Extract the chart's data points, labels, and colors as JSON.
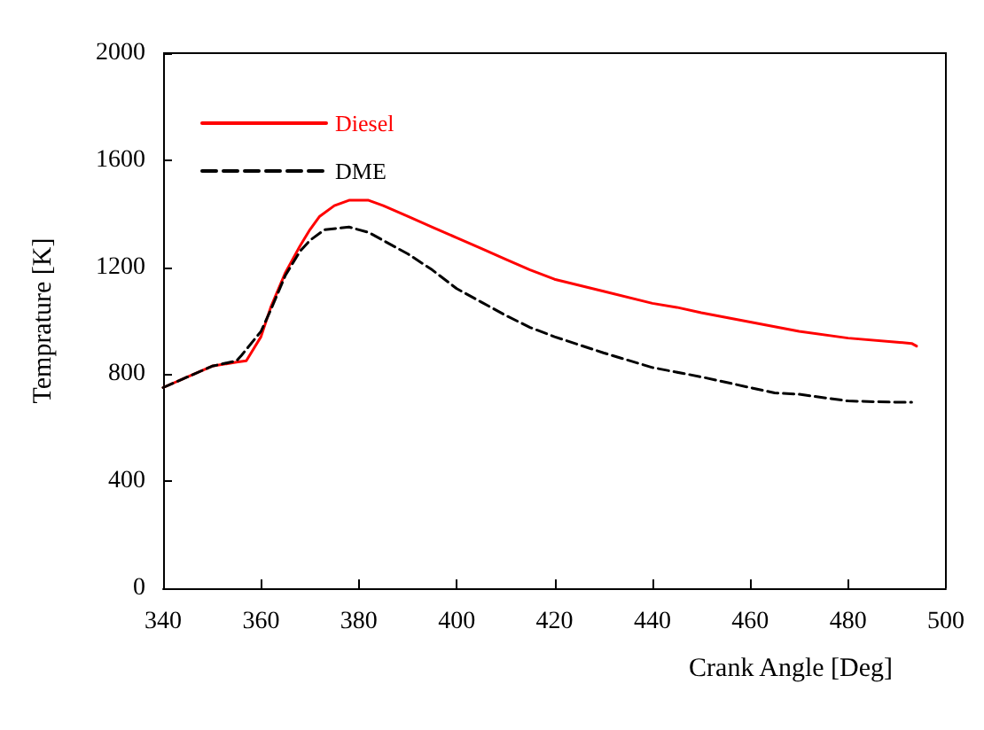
{
  "chart_data": {
    "type": "line",
    "xlabel": "Crank Angle [Deg]",
    "ylabel": "Temprature [K]",
    "xlim": [
      340,
      500
    ],
    "xticks": [
      340,
      360,
      380,
      400,
      420,
      440,
      460,
      480,
      500
    ],
    "ylim": [
      0,
      2000
    ],
    "yticks": [
      0,
      400,
      800,
      1200,
      1600,
      2000
    ],
    "grid": false,
    "legend": "top left",
    "marker": "none",
    "series": [
      {
        "name": "Diesel",
        "color": "#ff0000",
        "line_style": "solid",
        "x": [
          340,
          345,
          350,
          355,
          357,
          358,
          360,
          362,
          365,
          368,
          370,
          372,
          375,
          378,
          382,
          385,
          390,
          395,
          400,
          405,
          410,
          415,
          420,
          430,
          440,
          445,
          450,
          460,
          470,
          480,
          490,
          493,
          494
        ],
        "values": [
          750,
          790,
          830,
          845,
          850,
          880,
          940,
          1050,
          1180,
          1280,
          1340,
          1390,
          1430,
          1450,
          1450,
          1430,
          1390,
          1350,
          1310,
          1270,
          1230,
          1190,
          1155,
          1110,
          1065,
          1050,
          1030,
          995,
          960,
          935,
          920,
          915,
          905
        ]
      },
      {
        "name": "DME",
        "color": "#000000",
        "line_style": "dashed",
        "x": [
          340,
          345,
          350,
          355,
          356,
          360,
          362,
          365,
          368,
          370,
          373,
          378,
          382,
          385,
          390,
          395,
          400,
          405,
          410,
          415,
          420,
          430,
          440,
          450,
          460,
          465,
          470,
          480,
          490,
          493
        ],
        "values": [
          750,
          790,
          830,
          850,
          870,
          960,
          1040,
          1170,
          1260,
          1300,
          1340,
          1350,
          1330,
          1300,
          1250,
          1190,
          1120,
          1070,
          1020,
          975,
          940,
          880,
          825,
          790,
          750,
          730,
          725,
          700,
          695,
          695
        ]
      }
    ]
  }
}
